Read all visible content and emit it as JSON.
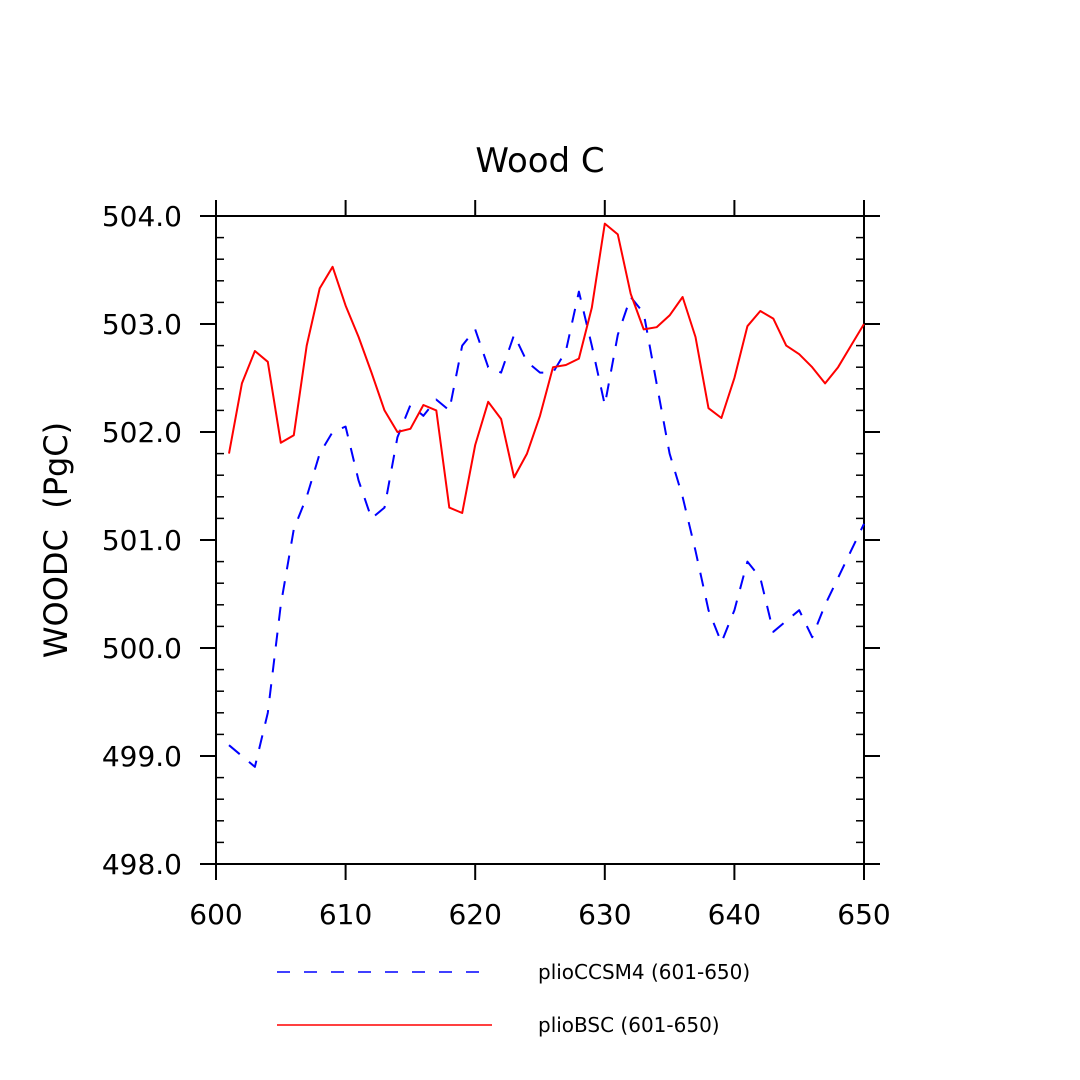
{
  "chart_data": {
    "type": "line",
    "title": "Wood C",
    "xlabel": "",
    "ylabel": "WOODC  (PgC)",
    "xlim": [
      600,
      650
    ],
    "ylim": [
      498.0,
      504.0
    ],
    "x_ticks": [
      600,
      610,
      620,
      630,
      640,
      650
    ],
    "x_tick_labels": [
      "600",
      "610",
      "620",
      "630",
      "640",
      "650"
    ],
    "y_ticks": [
      498.0,
      499.0,
      500.0,
      501.0,
      502.0,
      503.0,
      504.0
    ],
    "y_tick_labels": [
      "498.0",
      "499.0",
      "500.0",
      "501.0",
      "502.0",
      "503.0",
      "504.0"
    ],
    "grid": false,
    "legend_position": "bottom",
    "x": [
      601,
      602,
      603,
      604,
      605,
      606,
      607,
      608,
      609,
      610,
      611,
      612,
      613,
      614,
      615,
      616,
      617,
      618,
      619,
      620,
      621,
      622,
      623,
      624,
      625,
      626,
      627,
      628,
      629,
      630,
      631,
      632,
      633,
      634,
      635,
      636,
      637,
      638,
      639,
      640,
      641,
      642,
      643,
      644,
      645,
      646,
      647,
      648,
      649,
      650
    ],
    "series": [
      {
        "name": "plioCCSM4 (601-650)",
        "color": "#0000ff",
        "dash": "dashed",
        "values": [
          499.1,
          499.0,
          498.9,
          499.4,
          500.4,
          501.1,
          501.4,
          501.8,
          502.0,
          502.05,
          501.55,
          501.2,
          501.3,
          501.95,
          502.25,
          502.15,
          502.3,
          502.2,
          502.8,
          502.95,
          502.6,
          502.55,
          502.9,
          502.65,
          502.55,
          502.55,
          502.75,
          503.3,
          502.8,
          502.25,
          502.9,
          503.25,
          503.1,
          502.45,
          501.8,
          501.4,
          500.9,
          500.35,
          500.05,
          500.35,
          500.8,
          500.65,
          500.15,
          500.25,
          500.35,
          500.1,
          500.4,
          500.65,
          500.9,
          501.15
        ]
      },
      {
        "name": "plioBSC (601-650)",
        "color": "#ff0000",
        "dash": "solid",
        "values": [
          501.8,
          502.45,
          502.75,
          502.65,
          501.9,
          501.97,
          502.8,
          503.33,
          503.53,
          503.17,
          502.88,
          502.55,
          502.2,
          502.0,
          502.03,
          502.25,
          502.2,
          501.3,
          501.25,
          501.88,
          502.28,
          502.12,
          501.58,
          501.8,
          502.15,
          502.6,
          502.62,
          502.68,
          503.15,
          503.93,
          503.83,
          503.28,
          502.95,
          502.97,
          503.08,
          503.25,
          502.88,
          502.22,
          502.13,
          502.5,
          502.98,
          503.12,
          503.05,
          502.8,
          502.72,
          502.6,
          502.45,
          502.6,
          502.8,
          503.0
        ]
      }
    ]
  }
}
